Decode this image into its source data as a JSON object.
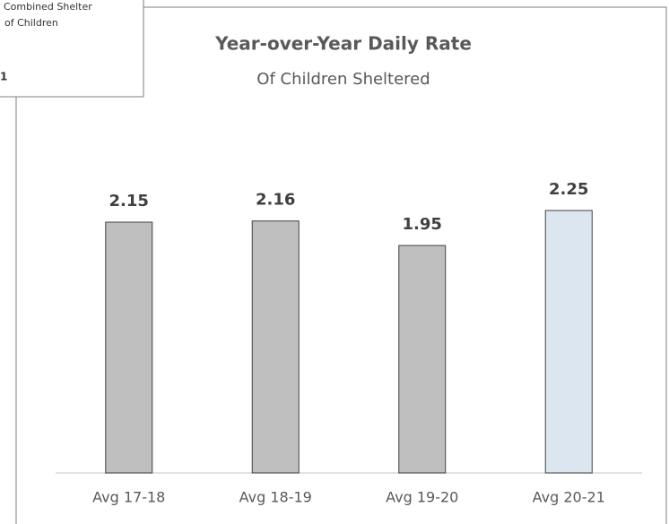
{
  "overlay": {
    "line1": "Combined Shelter",
    "line2": "of Children",
    "line3": "1"
  },
  "chart_data": {
    "type": "bar",
    "title": "Year-over-Year Daily Rate",
    "subtitle": "Of Children Sheltered",
    "categories": [
      "Avg 17-18",
      "Avg 18-19",
      "Avg 19-20",
      "Avg 20-21"
    ],
    "values": [
      2.15,
      2.16,
      1.95,
      2.25
    ],
    "colors": [
      "#bfbfbf",
      "#bfbfbf",
      "#bfbfbf",
      "#dce6f1"
    ]
  }
}
